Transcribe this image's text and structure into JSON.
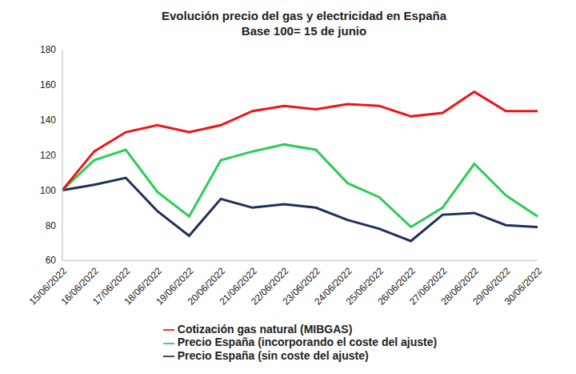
{
  "chart_data": {
    "type": "line",
    "title": "Evolución precio del gas y electricidad en España",
    "subtitle": "Base 100= 15 de junio",
    "categories": [
      "15/06/2022",
      "16/06/2022",
      "17/06/2022",
      "18/06/2022",
      "19/06/2022",
      "20/06/2022",
      "21/06/2022",
      "22/06/2022",
      "23/06/2022",
      "24/06/2022",
      "25/06/2022",
      "26/06/2022",
      "27/06/2022",
      "28/06/2022",
      "29/06/2022",
      "30/06/2022"
    ],
    "series": [
      {
        "name": "Precio España (sin coste del ajuste)",
        "color": "#1f2f5c",
        "values": [
          100,
          103,
          107,
          88,
          74,
          95,
          90,
          92,
          90,
          83,
          78,
          71,
          86,
          87,
          80,
          79
        ]
      },
      {
        "name": "Precio España (incorporando el coste del ajuste)",
        "color": "#2ecc55",
        "values": [
          100,
          117,
          123,
          99,
          85,
          117,
          122,
          126,
          123,
          104,
          96,
          79,
          90,
          115,
          97,
          85
        ]
      },
      {
        "name": "Cotización gas natural (MIBGAS)",
        "color": "#f01414",
        "values": [
          100,
          122,
          133,
          137,
          133,
          137,
          145,
          148,
          146,
          149,
          148,
          142,
          144,
          156,
          145,
          145
        ]
      }
    ],
    "ylim": [
      60,
      180
    ],
    "yticks": [
      60,
      80,
      100,
      120,
      140,
      160,
      180
    ],
    "grid": false,
    "legend": "bottom"
  }
}
